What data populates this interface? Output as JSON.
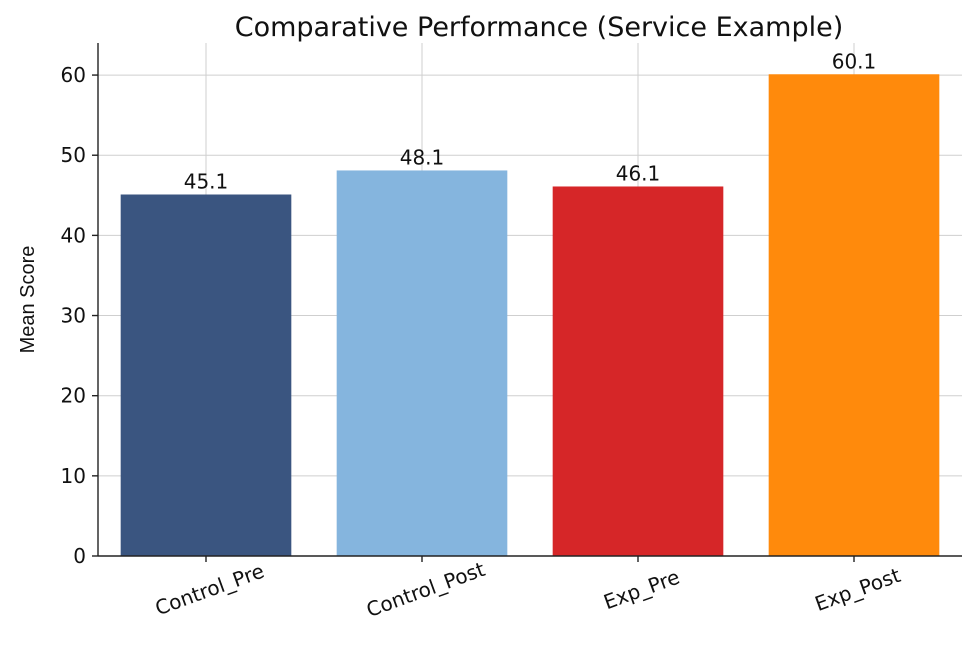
{
  "chart_data": {
    "type": "bar",
    "title": "Comparative Performance (Service Example)",
    "xlabel": "",
    "ylabel": "Mean Score",
    "categories": [
      "Control_Pre",
      "Control_Post",
      "Exp_Pre",
      "Exp_Post"
    ],
    "values": [
      45.1,
      48.1,
      46.1,
      60.1
    ],
    "data_labels": [
      "45.1",
      "48.1",
      "46.1",
      "60.1"
    ],
    "colors": [
      "#3a5580",
      "#85b5de",
      "#d62628",
      "#ff8a0c"
    ],
    "ylim": [
      0,
      64
    ],
    "yticks": [
      0,
      10,
      20,
      30,
      40,
      50,
      60
    ],
    "grid": true,
    "x_tick_rotation": -20
  }
}
